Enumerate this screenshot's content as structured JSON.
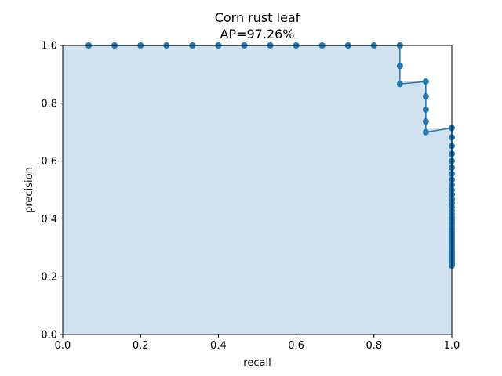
{
  "chart_data": {
    "type": "line",
    "title": "Corn rust leaf",
    "subtitle": "AP=97.26%",
    "xlabel": "recall",
    "ylabel": "precision",
    "xlim": [
      0.0,
      1.0
    ],
    "ylim": [
      0.0,
      1.0
    ],
    "xticks": [
      "0.0",
      "0.2",
      "0.4",
      "0.6",
      "0.8",
      "1.0"
    ],
    "yticks": [
      "0.0",
      "0.2",
      "0.4",
      "0.6",
      "0.8",
      "1.0"
    ],
    "grid": false,
    "legend": "none",
    "series": [
      {
        "color": "#1f77b4",
        "fill_color": "#d0e1ef",
        "marker": "circle",
        "x": [
          0.0667,
          0.1333,
          0.2,
          0.2667,
          0.3333,
          0.4,
          0.4667,
          0.5333,
          0.6,
          0.6667,
          0.7333,
          0.8,
          0.8667,
          0.8667,
          0.8667,
          0.9333,
          0.9333,
          0.9333,
          0.9333,
          0.9333,
          1.0,
          1.0,
          1.0,
          1.0,
          1.0,
          1.0,
          1.0,
          1.0,
          1.0,
          1.0,
          1.0,
          1.0,
          1.0,
          1.0,
          1.0,
          1.0,
          1.0,
          1.0,
          1.0,
          1.0,
          1.0,
          1.0,
          1.0,
          1.0,
          1.0,
          1.0,
          1.0,
          1.0,
          1.0,
          1.0,
          1.0,
          1.0,
          1.0,
          1.0,
          1.0,
          1.0,
          1.0,
          1.0,
          1.0,
          1.0,
          1.0,
          1.0,
          1.0
        ],
        "y": [
          1.0,
          1.0,
          1.0,
          1.0,
          1.0,
          1.0,
          1.0,
          1.0,
          1.0,
          1.0,
          1.0,
          1.0,
          1.0,
          0.9286,
          0.8667,
          0.875,
          0.8235,
          0.7778,
          0.7368,
          0.7,
          0.7143,
          0.6818,
          0.6522,
          0.625,
          0.6,
          0.5769,
          0.5556,
          0.5357,
          0.5172,
          0.5,
          0.4839,
          0.4688,
          0.4545,
          0.4412,
          0.4286,
          0.4167,
          0.4054,
          0.3947,
          0.3846,
          0.375,
          0.3659,
          0.3571,
          0.3488,
          0.3409,
          0.3333,
          0.3261,
          0.3191,
          0.3125,
          0.3061,
          0.3,
          0.2941,
          0.2885,
          0.283,
          0.2778,
          0.2727,
          0.2679,
          0.2632,
          0.2586,
          0.2542,
          0.25,
          0.2459,
          0.2419,
          0.2381
        ]
      }
    ],
    "interpolated_envelope_color": "#f4b6b6"
  }
}
